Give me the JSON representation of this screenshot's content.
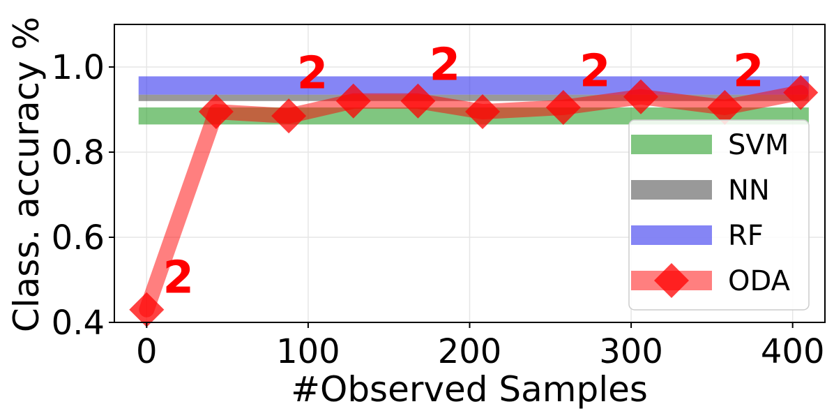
{
  "chart_data": {
    "type": "line",
    "title": "",
    "xlabel": "#Observed Samples",
    "ylabel": "Class. accuracy %",
    "xlim": [
      -20,
      420
    ],
    "ylim": [
      0.4,
      1.1
    ],
    "xticks": [
      0,
      100,
      200,
      300,
      400
    ],
    "xtick_labels": [
      "0",
      "100",
      "200",
      "300",
      "400"
    ],
    "yticks": [
      0.4,
      0.6,
      0.8,
      1.0
    ],
    "ytick_labels": [
      "0.4",
      "0.6",
      "0.8",
      "1.0"
    ],
    "grid": true,
    "legend_position": "lower-right",
    "baselines": [
      {
        "name": "SVM",
        "color": "#2ca02c",
        "range": [
          0.865,
          0.905
        ],
        "x_span": [
          -5,
          410
        ]
      },
      {
        "name": "NN",
        "color": "#555555",
        "range": [
          0.92,
          0.935
        ],
        "x_span": [
          -5,
          410
        ]
      },
      {
        "name": "RF",
        "color": "#3333ee",
        "range": [
          0.935,
          0.978
        ],
        "x_span": [
          -5,
          410
        ]
      }
    ],
    "series": [
      {
        "name": "ODA",
        "color": "#ff0000",
        "x": [
          0,
          43,
          88,
          128,
          168,
          208,
          258,
          306,
          358,
          405
        ],
        "y": [
          0.43,
          0.895,
          0.885,
          0.92,
          0.92,
          0.895,
          0.905,
          0.93,
          0.905,
          0.94
        ]
      }
    ],
    "annotations": [
      {
        "text": "2",
        "x": 10,
        "y": 0.47
      },
      {
        "text": "2",
        "x": 93,
        "y": 0.95
      },
      {
        "text": "2",
        "x": 175,
        "y": 0.97
      },
      {
        "text": "2",
        "x": 268,
        "y": 0.955
      },
      {
        "text": "2",
        "x": 363,
        "y": 0.955
      }
    ]
  }
}
